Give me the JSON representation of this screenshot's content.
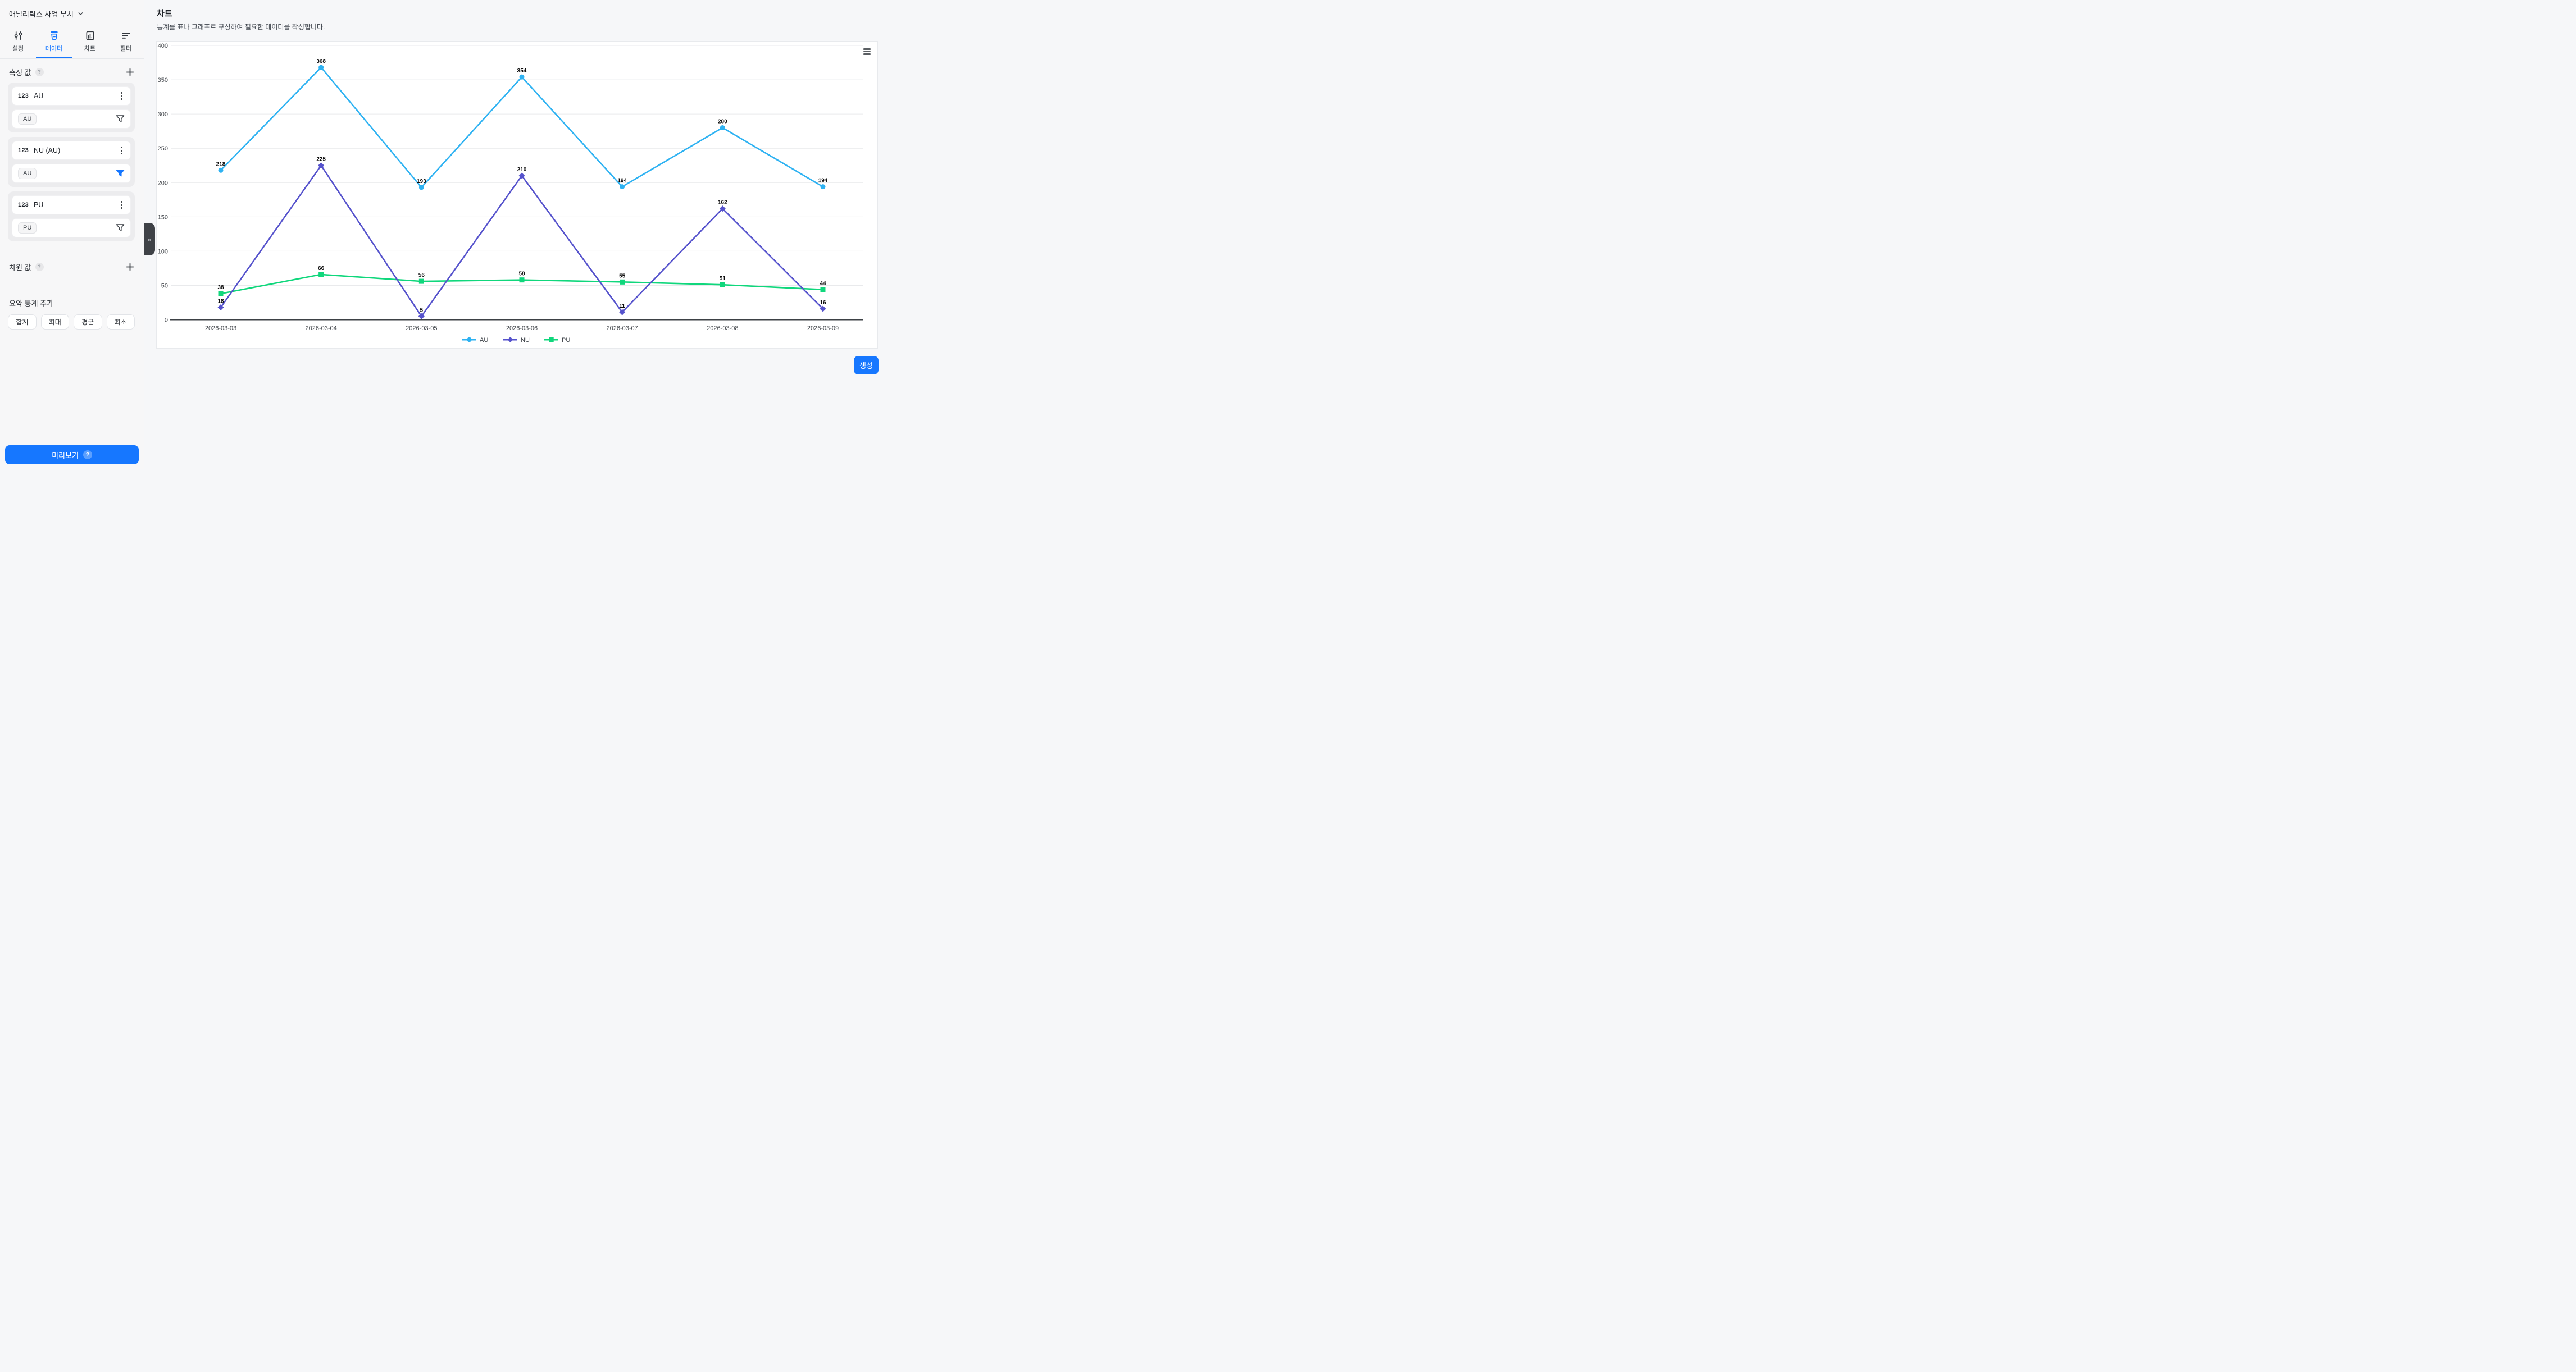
{
  "theme": {
    "accent": "#1677ff"
  },
  "sidebar": {
    "workspace_label": "애널리틱스 사업 부서",
    "nav": [
      {
        "label": "설정"
      },
      {
        "label": "데이터"
      },
      {
        "label": "차트"
      },
      {
        "label": "필터"
      }
    ],
    "measures_title": "측정 값",
    "measures_help": "?",
    "cards": [
      {
        "type_badge": "123",
        "name": "AU",
        "chip": "AU",
        "filter_active": false
      },
      {
        "type_badge": "123",
        "name": "NU (AU)",
        "chip": "AU",
        "filter_active": true
      },
      {
        "type_badge": "123",
        "name": "PU",
        "chip": "PU",
        "filter_active": false
      }
    ],
    "dimensions_title": "차원 값",
    "dimensions_help": "?",
    "summary_title": "요약 통계 추가",
    "summary_buttons": [
      "합계",
      "최대",
      "평균",
      "최소"
    ],
    "preview_label": "미리보기",
    "preview_help": "?",
    "collapse_glyph": "«"
  },
  "main": {
    "title": "차트",
    "subtitle": "통계를 표나 그래프로 구성하여 필요한 데이터를 작성합니다.",
    "create_label": "생성"
  },
  "chart_data": {
    "type": "line",
    "categories": [
      "2026-03-03",
      "2026-03-04",
      "2026-03-05",
      "2026-03-06",
      "2026-03-07",
      "2026-03-08",
      "2026-03-09"
    ],
    "series": [
      {
        "name": "AU",
        "color": "#2eb2f2",
        "marker": "circle",
        "values": [
          218,
          368,
          193,
          354,
          194,
          280,
          194
        ]
      },
      {
        "name": "NU",
        "color": "#5552cc",
        "marker": "diamond",
        "values": [
          18,
          225,
          5,
          210,
          11,
          162,
          16
        ]
      },
      {
        "name": "PU",
        "color": "#10d77c",
        "marker": "square",
        "values": [
          38,
          66,
          56,
          58,
          55,
          51,
          44
        ]
      }
    ],
    "title": "",
    "xlabel": "",
    "ylabel": "",
    "ylim": [
      0,
      400
    ],
    "ytick_step": 50,
    "grid": true,
    "point_labels": true,
    "legend_position": "bottom"
  }
}
